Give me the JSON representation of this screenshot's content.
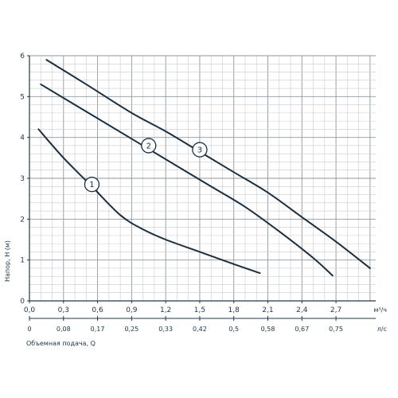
{
  "chart_data": {
    "type": "line",
    "xlabel": "",
    "ylabel": "Напор, Н (м)",
    "x_unit": "м³/ч",
    "xlim": [
      0,
      3.05
    ],
    "ylim": [
      0,
      6
    ],
    "x_ticks": [
      "0,0",
      "0,3",
      "0,6",
      "0,9",
      "1,2",
      "1,5",
      "1,8",
      "2,1",
      "2,4",
      "2,7"
    ],
    "y_ticks": [
      "0",
      "1",
      "2",
      "3",
      "4",
      "5",
      "6"
    ],
    "secondary_axis": {
      "label": "Объемная подача, Q",
      "unit": "л/с",
      "ticks": [
        "0",
        "0,08",
        "0,17",
        "0,25",
        "0,33",
        "0,42",
        "0,5",
        "0,58",
        "0,67",
        "0,75"
      ]
    },
    "grid": true,
    "series": [
      {
        "name": "1",
        "x": [
          0.08,
          0.3,
          0.55,
          0.8,
          1.0,
          1.2,
          1.5,
          1.8,
          2.03
        ],
        "y": [
          4.2,
          3.5,
          2.8,
          2.1,
          1.75,
          1.5,
          1.2,
          0.9,
          0.68
        ]
      },
      {
        "name": "2",
        "x": [
          0.1,
          0.4,
          0.7,
          1.0,
          1.3,
          1.6,
          1.9,
          2.2,
          2.5,
          2.67
        ],
        "y": [
          5.3,
          4.8,
          4.3,
          3.8,
          3.3,
          2.8,
          2.3,
          1.7,
          1.05,
          0.62
        ]
      },
      {
        "name": "3",
        "x": [
          0.15,
          0.5,
          0.9,
          1.2,
          1.5,
          1.8,
          2.1,
          2.4,
          2.7,
          3.0
        ],
        "y": [
          5.9,
          5.3,
          4.6,
          4.15,
          3.65,
          3.15,
          2.65,
          2.05,
          1.45,
          0.8
        ]
      }
    ],
    "curve_labels": [
      {
        "text": "1",
        "x": 0.55,
        "y": 2.85
      },
      {
        "text": "2",
        "x": 1.05,
        "y": 3.8
      },
      {
        "text": "3",
        "x": 1.5,
        "y": 3.7
      }
    ],
    "colors": {
      "line": "#1b2f3f",
      "grid_minor": "#c7ccd1",
      "grid_major": "#8e979f",
      "text": "#22384a",
      "background": "#ffffff"
    }
  }
}
